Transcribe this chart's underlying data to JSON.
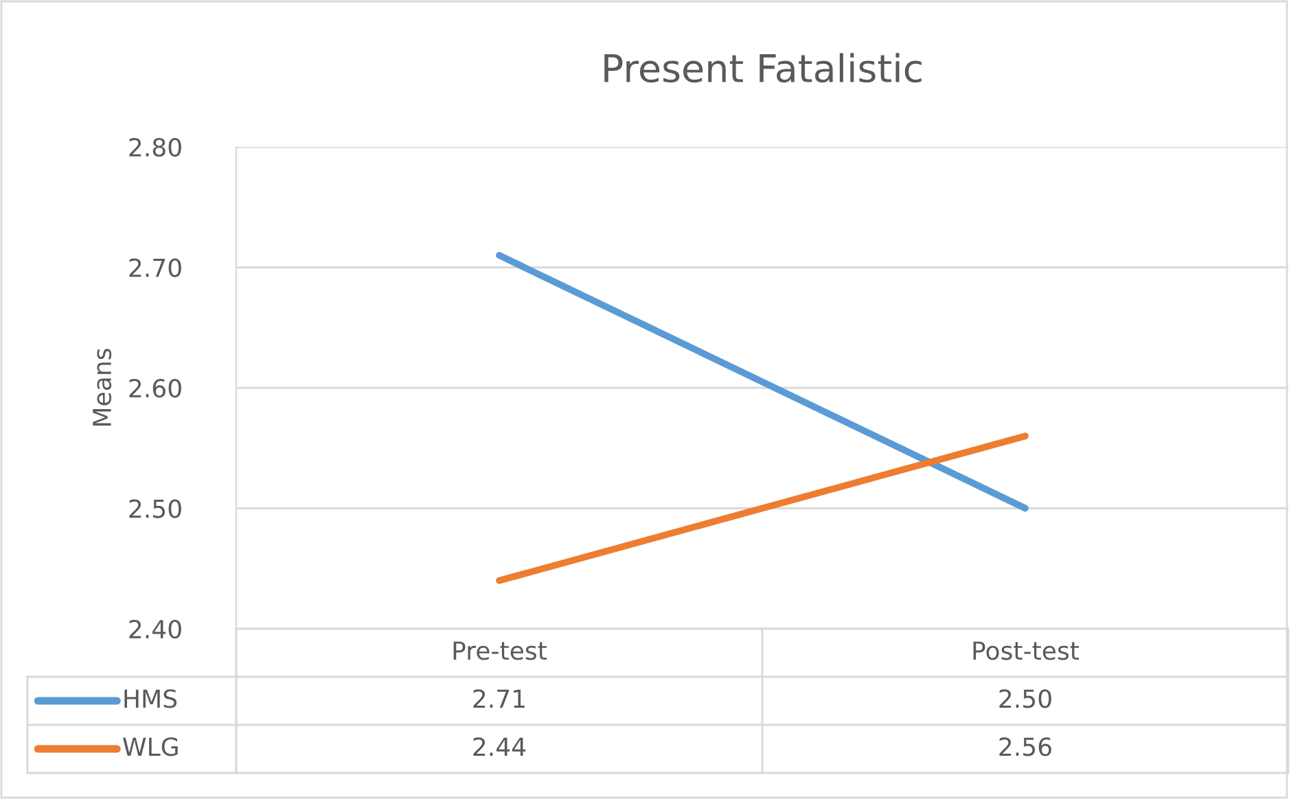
{
  "chart_data": {
    "type": "line",
    "title": "Present Fatalistic",
    "ylabel": "Means",
    "categories": [
      "Pre-test",
      "Post-test"
    ],
    "series": [
      {
        "name": "HMS",
        "color": "#5b9bd5",
        "values": [
          2.71,
          2.5
        ],
        "value_labels": [
          "2.71",
          "2.50"
        ]
      },
      {
        "name": "WLG",
        "color": "#ed7d31",
        "values": [
          2.44,
          2.56
        ],
        "value_labels": [
          "2.44",
          "2.56"
        ]
      }
    ],
    "ylim": [
      2.4,
      2.8
    ],
    "yticks": [
      {
        "value": 2.4,
        "label": "2.40"
      },
      {
        "value": 2.5,
        "label": "2.50"
      },
      {
        "value": 2.6,
        "label": "2.60"
      },
      {
        "value": 2.7,
        "label": "2.70"
      },
      {
        "value": 2.8,
        "label": "2.80"
      }
    ],
    "grid": "y",
    "legend": "bottom",
    "marker": "none",
    "line_style": "solid"
  }
}
